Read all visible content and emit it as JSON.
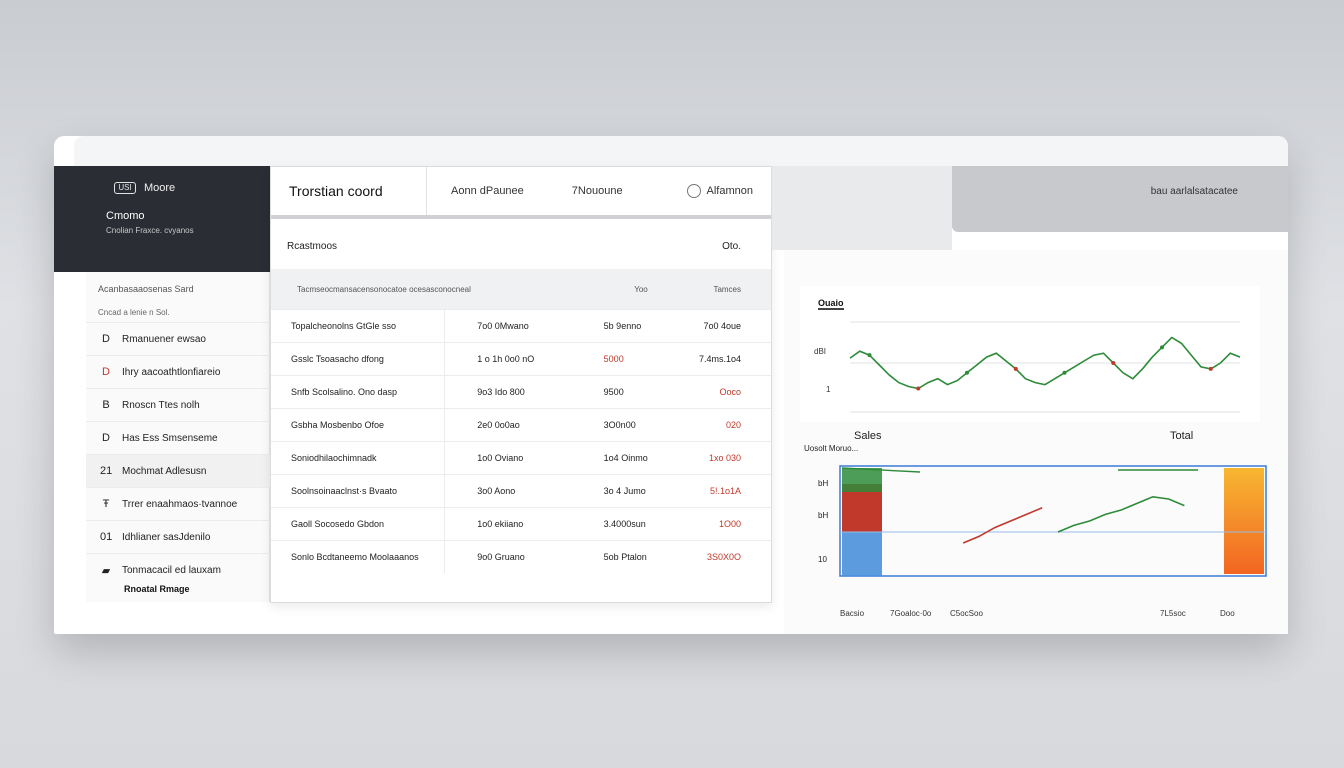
{
  "left": {
    "logo_mark": "USI",
    "logo_text": "Moore",
    "title": "Cmomo",
    "subtitle": "Cnolian Fraxce. cvyanos",
    "list_header": "Acanbasaaosenas Sard",
    "list_sub": "Cncad a lenie n Sol.",
    "items": [
      {
        "icon": "D",
        "label": "Rmanuener ewsao",
        "red": false
      },
      {
        "icon": "D",
        "label": "Ihry aacoathtlonfiareio",
        "red": true
      },
      {
        "icon": "B",
        "label": "Rnoscn Ttes nolh",
        "red": false
      },
      {
        "icon": "D",
        "label": "Has Ess Smsenseme",
        "red": false
      },
      {
        "icon": "21",
        "label": "Mochmat Adlesusn",
        "red": false
      },
      {
        "icon": "Ŧ",
        "label": "Trrer enaahmaos·tvannoe",
        "red": false
      },
      {
        "icon": "01",
        "label": "Idhlianer sasJdenilo",
        "red": false
      },
      {
        "icon": "▰",
        "label": "Tonmacacil ed lauxam",
        "red": false
      }
    ],
    "footer": "Rnoatal Rmage"
  },
  "main": {
    "title": "Trorstian coord",
    "tab1": "Aonn dPaunee",
    "tab2": "7Nououne",
    "tab3": "Alfamnon",
    "subheader_left": "Rcastmoos",
    "subheader_right": "Oto.",
    "columns": [
      "Tacmseocmansacensonocatoe ocesasconocneal",
      "Yoo",
      "Tamces"
    ],
    "rows": [
      {
        "c1": "Topalcheonolns GtGle sso",
        "c2": "7o0 0Mwano",
        "c3": "5b 9enno",
        "c4": "7o0 4oue",
        "c4red": false
      },
      {
        "c1": "Gsslc Tsoasacho dfong",
        "c2": "1 o 1h 0o0 nO",
        "c3": "5000",
        "c4": "7.4ms.1o4",
        "c4red": false,
        "c3red": true
      },
      {
        "c1": "Snfb Scolsalino. Ono dasp",
        "c2": "9o3 Ido 800",
        "c3": "9500",
        "c4": "Ooco",
        "c4red": true
      },
      {
        "c1": "Gsbha Mosbenbo Ofoe",
        "c2": "2e0 0o0ao",
        "c3": "3O0n00",
        "c4": "020",
        "c4red": true
      },
      {
        "c1": "Soniodhilaochimnadk",
        "c2": "1o0 Oviano",
        "c3": "1o4 Oinmo",
        "c4": "1xo 030",
        "c4red": true
      },
      {
        "c1": "Soolnsoinaaclnst·s Bvaato",
        "c2": "3o0 Aono",
        "c3": "3o 4 Jumo",
        "c4": "5!.1o1A",
        "c4red": true
      },
      {
        "c1": "Gaoll Socosedo Gbdon",
        "c2": "1o0 ekiiano",
        "c3": "3.4000sun",
        "c4": "1O00",
        "c4red": true
      },
      {
        "c1": "Sonlo Bcdtaneemo Moolaaanos",
        "c2": "9o0 Gruano",
        "c3": "5ob Ptalon",
        "c4": "3S0X0O",
        "c4red": true
      }
    ]
  },
  "right": {
    "top_bar_label": "bau aarlalsatacatee",
    "chart1_title": "Ouaio",
    "chart1_yticks": [
      "dBI",
      "1"
    ],
    "chart2_title": "Sales",
    "chart2_total": "Total",
    "chart2_sub": "Uosolt Moruo...",
    "chart2_yticks": [
      "bH",
      "bH",
      "10"
    ],
    "chart2_xlabels": [
      "Bacsio",
      "7Goaloc·0o",
      "C5ocSoo",
      "7L5soc",
      "Doo"
    ]
  },
  "chart_data": [
    {
      "type": "line",
      "title": "Ouaio",
      "x": [
        0,
        1,
        2,
        3,
        4,
        5,
        6,
        7,
        8,
        9,
        10,
        11,
        12,
        13,
        14,
        15,
        16,
        17,
        18,
        19,
        20,
        21,
        22,
        23,
        24,
        25,
        26,
        27,
        28,
        29,
        30,
        31,
        32,
        33,
        34,
        35,
        36,
        37,
        38,
        39,
        40
      ],
      "series": [
        {
          "color": "#2e8b3a",
          "values": [
            55,
            62,
            58,
            48,
            38,
            30,
            26,
            24,
            30,
            34,
            28,
            32,
            40,
            48,
            56,
            60,
            52,
            44,
            34,
            30,
            28,
            34,
            40,
            46,
            52,
            58,
            60,
            50,
            40,
            34,
            44,
            56,
            66,
            76,
            70,
            58,
            46,
            44,
            50,
            60,
            56
          ]
        }
      ],
      "ylim": [
        0,
        100
      ],
      "grid": true
    },
    {
      "type": "line",
      "title": "Sales",
      "x": [
        0,
        1,
        2,
        3,
        4,
        5,
        6,
        7,
        8,
        9,
        10,
        11,
        12,
        13,
        14,
        15,
        16,
        17,
        18,
        19,
        20
      ],
      "series": [
        {
          "color": "#c0392b",
          "values": [
            null,
            null,
            null,
            null,
            30,
            36,
            44,
            50,
            56,
            62,
            null,
            null,
            null,
            null,
            null,
            null,
            null,
            null,
            null,
            null,
            null
          ]
        },
        {
          "color": "#2e8b3a",
          "values": [
            null,
            null,
            null,
            null,
            null,
            null,
            null,
            null,
            null,
            null,
            40,
            46,
            50,
            56,
            60,
            66,
            72,
            70,
            64,
            null,
            null
          ]
        }
      ],
      "ylim": [
        0,
        100
      ]
    }
  ]
}
